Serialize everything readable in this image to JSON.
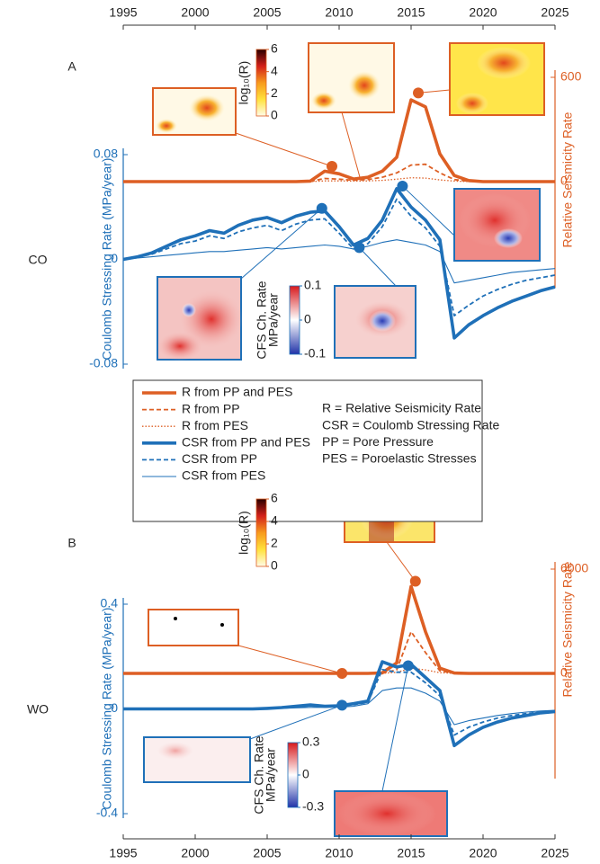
{
  "chart_data": [
    {
      "type": "line",
      "panel": "A",
      "region": "CO",
      "ylabel": "Coulomb Stressing Rate (MPa/year)",
      "y2label": "Relative Seismicity Rate",
      "xlim": [
        1995,
        2025
      ],
      "xticks": [
        1995,
        2000,
        2005,
        2010,
        2015,
        2020,
        2025
      ],
      "ylim": [
        -0.08,
        0.08
      ],
      "yticks": [
        -0.08,
        0,
        0.08
      ],
      "y2lim": [
        -600,
        600
      ],
      "y2ticks": [
        0,
        600
      ],
      "x": [
        1995,
        1996,
        1997,
        1998,
        1999,
        2000,
        2001,
        2002,
        2003,
        2004,
        2005,
        2006,
        2007,
        2008,
        2009,
        2010,
        2011,
        2012,
        2013,
        2014,
        2015,
        2016,
        2017,
        2018,
        2019,
        2020,
        2021,
        2022,
        2023,
        2024,
        2025
      ],
      "series": [
        {
          "name": "R from PP and PES",
          "color": "#dd5f24",
          "style": "thick",
          "axis": "y2",
          "values": [
            0,
            0,
            0,
            0,
            0,
            0,
            0,
            0,
            0,
            0,
            0,
            0,
            0,
            3,
            60,
            45,
            15,
            25,
            60,
            140,
            470,
            430,
            160,
            35,
            6,
            0,
            0,
            0,
            0,
            0,
            0
          ]
        },
        {
          "name": "R from PP",
          "color": "#dd5f24",
          "style": "dashed",
          "axis": "y2",
          "values": [
            0,
            0,
            0,
            0,
            0,
            0,
            0,
            0,
            0,
            0,
            0,
            0,
            0,
            1,
            18,
            14,
            8,
            12,
            25,
            50,
            95,
            100,
            50,
            12,
            2,
            0,
            0,
            0,
            0,
            0,
            0
          ]
        },
        {
          "name": "R from PES",
          "color": "#dd5f24",
          "style": "dotted",
          "axis": "y2",
          "values": [
            0,
            0,
            0,
            0,
            0,
            0,
            0,
            0,
            0,
            0,
            0,
            0,
            0,
            0,
            4,
            4,
            3,
            4,
            7,
            14,
            22,
            20,
            10,
            3,
            0,
            0,
            0,
            0,
            0,
            0,
            0
          ]
        },
        {
          "name": "CSR from PP and PES",
          "color": "#1f70b8",
          "style": "thick",
          "axis": "y",
          "values": [
            0,
            0.002,
            0.005,
            0.01,
            0.015,
            0.018,
            0.022,
            0.02,
            0.026,
            0.03,
            0.032,
            0.028,
            0.033,
            0.036,
            0.037,
            0.025,
            0.011,
            0.016,
            0.03,
            0.054,
            0.04,
            0.03,
            0.015,
            -0.06,
            -0.05,
            -0.043,
            -0.037,
            -0.032,
            -0.028,
            -0.024,
            -0.021
          ]
        },
        {
          "name": "CSR from PP",
          "color": "#1f70b8",
          "style": "dashed",
          "axis": "y",
          "values": [
            0,
            0.002,
            0.004,
            0.008,
            0.012,
            0.014,
            0.018,
            0.016,
            0.021,
            0.024,
            0.026,
            0.022,
            0.027,
            0.03,
            0.031,
            0.02,
            0.008,
            0.012,
            0.025,
            0.046,
            0.033,
            0.024,
            0.01,
            -0.043,
            -0.035,
            -0.028,
            -0.023,
            -0.019,
            -0.016,
            -0.014,
            -0.012
          ]
        },
        {
          "name": "CSR from PES",
          "color": "#1f70b8",
          "style": "thin",
          "axis": "y",
          "values": [
            0,
            0.001,
            0.002,
            0.003,
            0.004,
            0.005,
            0.006,
            0.006,
            0.007,
            0.008,
            0.009,
            0.008,
            0.009,
            0.01,
            0.011,
            0.01,
            0.008,
            0.01,
            0.013,
            0.015,
            0.013,
            0.011,
            0.006,
            -0.018,
            -0.016,
            -0.014,
            -0.012,
            -0.01,
            -0.009,
            -0.008,
            -0.007
          ]
        }
      ],
      "highlights": [
        {
          "x": 2009.5,
          "value": 88,
          "axis": "y2",
          "color": "#dd5f24"
        },
        {
          "x": 2015.5,
          "value": 510,
          "axis": "y2",
          "color": "#dd5f24"
        },
        {
          "x": 2008.8,
          "value": 0.039,
          "axis": "y",
          "color": "#1f70b8"
        },
        {
          "x": 2011.4,
          "value": 0.009,
          "axis": "y",
          "color": "#1f70b8"
        },
        {
          "x": 2014.4,
          "value": 0.056,
          "axis": "y",
          "color": "#1f70b8"
        }
      ],
      "colorbars": [
        {
          "label": "log₁₀(R)",
          "kind": "seismicity",
          "ticks": [
            0,
            2,
            4,
            6
          ]
        },
        {
          "label": "CFS Ch. Rate",
          "unit": "MPa/year",
          "kind": "stress",
          "ticks": [
            0.1,
            0,
            -0.1
          ]
        }
      ],
      "legend_notes": [
        "R = Relative Seismicity Rate",
        "CSR = Coulomb Stressing Rate",
        "PP = Pore Pressure",
        "PES = Poroelastic Stresses"
      ]
    },
    {
      "type": "line",
      "panel": "B",
      "region": "WO",
      "ylabel": "Coulomb Stressing Rate (MPa/year)",
      "y2label": "Relative Seismicity Rate",
      "xlim": [
        1995,
        2025
      ],
      "xticks": [
        1995,
        2000,
        2005,
        2010,
        2015,
        2020,
        2025
      ],
      "ylim": [
        -0.4,
        0.4
      ],
      "yticks": [
        -0.4,
        0,
        0.4
      ],
      "y2lim": [
        -6000,
        6000
      ],
      "y2ticks": [
        0,
        6000
      ],
      "x": [
        1995,
        1996,
        1997,
        1998,
        1999,
        2000,
        2001,
        2002,
        2003,
        2004,
        2005,
        2006,
        2007,
        2008,
        2009,
        2010,
        2011,
        2012,
        2013,
        2014,
        2015,
        2016,
        2017,
        2018,
        2019,
        2020,
        2021,
        2022,
        2023,
        2024,
        2025
      ],
      "series": [
        {
          "color": "#dd5f24",
          "style": "thick",
          "axis": "y2",
          "values": [
            0,
            0,
            0,
            0,
            0,
            0,
            0,
            0,
            0,
            0,
            0,
            0,
            0,
            0,
            0,
            0,
            0,
            0,
            30,
            600,
            5000,
            2400,
            300,
            20,
            0,
            0,
            0,
            0,
            0,
            0,
            0
          ]
        },
        {
          "color": "#dd5f24",
          "style": "dashed",
          "axis": "y2",
          "values": [
            0,
            0,
            0,
            0,
            0,
            0,
            0,
            0,
            0,
            0,
            0,
            0,
            0,
            0,
            0,
            0,
            0,
            0,
            10,
            200,
            2400,
            1200,
            150,
            10,
            0,
            0,
            0,
            0,
            0,
            0,
            0
          ]
        },
        {
          "color": "#dd5f24",
          "style": "dotted",
          "axis": "y2",
          "values": [
            0,
            0,
            0,
            0,
            0,
            0,
            0,
            0,
            0,
            0,
            0,
            0,
            0,
            0,
            0,
            0,
            0,
            0,
            5,
            60,
            300,
            200,
            40,
            3,
            0,
            0,
            0,
            0,
            0,
            0,
            0
          ]
        },
        {
          "color": "#1f70b8",
          "style": "thick",
          "axis": "y",
          "values": [
            0,
            0,
            0,
            0,
            0,
            0,
            0,
            0,
            0,
            0,
            0.002,
            0.005,
            0.01,
            0.015,
            0.01,
            0.012,
            0.02,
            0.03,
            0.18,
            0.16,
            0.17,
            0.12,
            0.07,
            -0.14,
            -0.1,
            -0.07,
            -0.05,
            -0.035,
            -0.025,
            -0.015,
            -0.01
          ]
        },
        {
          "color": "#1f70b8",
          "style": "dashed",
          "axis": "y",
          "values": [
            0,
            0,
            0,
            0,
            0,
            0,
            0,
            0,
            0,
            0,
            0.001,
            0.004,
            0.008,
            0.012,
            0.008,
            0.01,
            0.016,
            0.025,
            0.15,
            0.14,
            0.14,
            0.1,
            0.05,
            -0.1,
            -0.07,
            -0.05,
            -0.035,
            -0.025,
            -0.018,
            -0.012,
            -0.008
          ]
        },
        {
          "color": "#1f70b8",
          "style": "thin",
          "axis": "y",
          "values": [
            0,
            0,
            0,
            0,
            0,
            0,
            0,
            0,
            0,
            0,
            0.001,
            0.002,
            0.004,
            0.006,
            0.006,
            0.007,
            0.01,
            0.02,
            0.07,
            0.08,
            0.08,
            0.06,
            0.03,
            -0.06,
            -0.045,
            -0.035,
            -0.025,
            -0.018,
            -0.012,
            -0.008,
            -0.005
          ]
        }
      ],
      "highlights": [
        {
          "x": 2010.2,
          "value": 0,
          "axis": "y2",
          "color": "#dd5f24"
        },
        {
          "x": 2015.3,
          "value": 5300,
          "axis": "y2",
          "color": "#dd5f24"
        },
        {
          "x": 2010.2,
          "value": 0.014,
          "axis": "y",
          "color": "#1f70b8"
        },
        {
          "x": 2014.8,
          "value": 0.165,
          "axis": "y",
          "color": "#1f70b8"
        }
      ],
      "colorbars": [
        {
          "label": "log₁₀(R)",
          "kind": "seismicity",
          "ticks": [
            0,
            2,
            4,
            6
          ]
        },
        {
          "label": "CFS Ch. Rate",
          "unit": "MPa/year",
          "kind": "stress",
          "ticks": [
            0.3,
            0,
            -0.3
          ]
        }
      ]
    }
  ]
}
